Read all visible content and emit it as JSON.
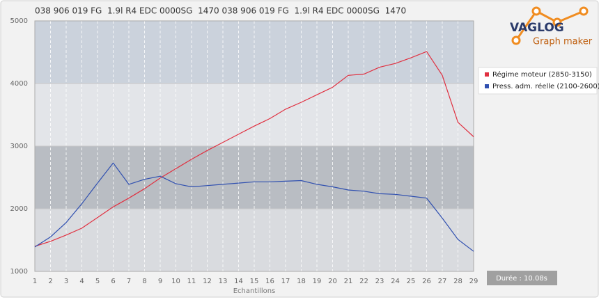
{
  "chart_data": {
    "type": "line",
    "title": "038 906 019 FG  1.9l R4 EDC 0000SG  1470 038 906 019 FG  1.9l R4 EDC 0000SG  1470",
    "x_label": "Echantillons",
    "x": [
      1,
      2,
      3,
      4,
      5,
      6,
      7,
      8,
      9,
      10,
      11,
      12,
      13,
      14,
      15,
      16,
      17,
      18,
      19,
      20,
      21,
      22,
      23,
      24,
      25,
      26,
      27,
      28,
      29
    ],
    "xlim": [
      1,
      29
    ],
    "xticks": [
      1,
      2,
      3,
      4,
      5,
      6,
      7,
      8,
      9,
      10,
      11,
      12,
      13,
      14,
      15,
      16,
      17,
      18,
      19,
      20,
      21,
      22,
      23,
      24,
      25,
      26,
      27,
      28,
      29
    ],
    "ylim": [
      1000,
      5000
    ],
    "yticks": [
      1000,
      2000,
      3000,
      4000,
      5000
    ],
    "series": [
      {
        "name": "Régime moteur (2850-3150)",
        "color": "#e03040",
        "values": [
          1400,
          1480,
          1580,
          1690,
          1860,
          2030,
          2170,
          2320,
          2490,
          2640,
          2790,
          2930,
          3060,
          3190,
          3320,
          3440,
          3590,
          3700,
          3820,
          3940,
          4130,
          4150,
          4260,
          4320,
          4410,
          4510,
          4130,
          3380,
          3150
        ]
      },
      {
        "name": "Press. adm. réelle (2100-2600)",
        "color": "#3050b0",
        "values": [
          1390,
          1550,
          1780,
          2080,
          2410,
          2730,
          2390,
          2470,
          2520,
          2400,
          2350,
          2370,
          2390,
          2410,
          2430,
          2430,
          2440,
          2450,
          2390,
          2350,
          2300,
          2280,
          2240,
          2230,
          2200,
          2170,
          1850,
          1510,
          1320
        ]
      }
    ],
    "annotation": "Durée : 10.08s"
  },
  "logo": {
    "name": "VAGLOG",
    "subtitle": "Graph maker"
  }
}
